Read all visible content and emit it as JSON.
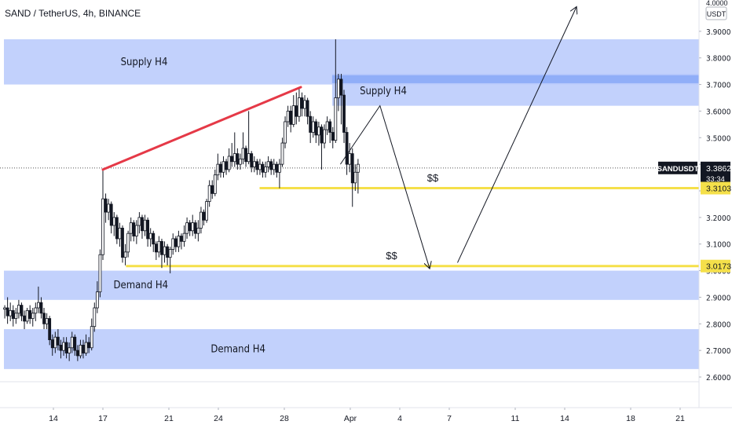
{
  "header": {
    "title": "SAND / TetherUS, 4h, BINANCE"
  },
  "colors": {
    "zone_fill": "#b7c9fb",
    "zone_dark": "#90aef8",
    "candle": "#131722",
    "trend_line": "#e53947",
    "level_line": "#f5e04a",
    "current_tag": "#131722",
    "level_tag": "#f5e04a",
    "dotted": "#555555",
    "arrow": "#131722"
  },
  "chart_data": {
    "type": "candlestick",
    "symbol": "SANDUSDT",
    "interval": "4h",
    "exchange": "BINANCE",
    "ylim": [
      2.55,
      4.0
    ],
    "y_unit": "USDT",
    "y_ticks": [
      "2.6000",
      "2.7000",
      "2.8000",
      "2.9000",
      "3.0000",
      "3.1000",
      "3.2000",
      "3.3000",
      "3.4000",
      "3.5000",
      "3.6000",
      "3.7000",
      "3.8000",
      "3.9000",
      "4.0000"
    ],
    "x_ticks": [
      {
        "label": "14",
        "day": 14
      },
      {
        "label": "17",
        "day": 17
      },
      {
        "label": "21",
        "day": 21
      },
      {
        "label": "24",
        "day": 24
      },
      {
        "label": "28",
        "day": 28
      },
      {
        "label": "Apr",
        "day": 32
      },
      {
        "label": "4",
        "day": 35
      },
      {
        "label": "7",
        "day": 38
      },
      {
        "label": "11",
        "day": 42
      },
      {
        "label": "14",
        "day": 45
      },
      {
        "label": "18",
        "day": 49
      },
      {
        "label": "21",
        "day": 52
      }
    ],
    "x_range_days": [
      11.0,
      54.6
    ],
    "current_price": {
      "label": "SANDUSDT",
      "value": "3.3862",
      "countdown": "33:34",
      "y": 3.3862
    },
    "levels": [
      {
        "value": "3.3103",
        "y": 3.3103,
        "from_day": 26.5
      },
      {
        "value": "3.0173",
        "y": 3.0173,
        "from_day": 18.4
      }
    ],
    "zones": [
      {
        "label": "Supply H4",
        "y_top": 3.87,
        "y_bottom": 3.7,
        "from_day": 11.0,
        "style": "fill"
      },
      {
        "label": "Supply H4",
        "y_top": 3.74,
        "y_bottom": 3.62,
        "from_day": 30.9,
        "style": "fill"
      },
      {
        "label": "Demand H4",
        "y_top": 3.0,
        "y_bottom": 2.89,
        "from_day": 11.0,
        "style": "fill"
      },
      {
        "label": "Demand H4",
        "y_top": 2.78,
        "y_bottom": 2.63,
        "from_day": 11.0,
        "style": "fill"
      }
    ],
    "liquidity_labels": [
      {
        "text": "$$",
        "day": 37.0,
        "y": 3.335
      },
      {
        "text": "$$",
        "day": 34.5,
        "y": 3.043
      }
    ],
    "trend_line": {
      "from_day": 17.0,
      "from_y": 3.38,
      "to_day": 29.0,
      "to_y": 3.69
    },
    "projection_path": [
      {
        "day": 31.4,
        "y": 3.4
      },
      {
        "day": 33.8,
        "y": 3.62
      },
      {
        "day": 36.8,
        "y": 3.01
      },
      {
        "day": 38.5,
        "y": 3.03
      },
      {
        "day": 45.7,
        "y": 3.99
      }
    ],
    "candles": [
      [
        11.05,
        2.855,
        2.86,
        2.82,
        2.87
      ],
      [
        11.22,
        2.86,
        2.83,
        2.8,
        2.9
      ],
      [
        11.39,
        2.83,
        2.85,
        2.81,
        2.88
      ],
      [
        11.56,
        2.85,
        2.82,
        2.79,
        2.87
      ],
      [
        11.73,
        2.82,
        2.84,
        2.8,
        2.86
      ],
      [
        11.9,
        2.84,
        2.87,
        2.82,
        2.89
      ],
      [
        12.07,
        2.87,
        2.83,
        2.81,
        2.88
      ],
      [
        12.24,
        2.83,
        2.81,
        2.78,
        2.85
      ],
      [
        12.41,
        2.81,
        2.85,
        2.8,
        2.86
      ],
      [
        12.58,
        2.85,
        2.82,
        2.8,
        2.87
      ],
      [
        12.75,
        2.82,
        2.84,
        2.79,
        2.86
      ],
      [
        12.92,
        2.84,
        2.86,
        2.81,
        2.88
      ],
      [
        13.09,
        2.86,
        2.88,
        2.84,
        2.94
      ],
      [
        13.26,
        2.88,
        2.84,
        2.82,
        2.9
      ],
      [
        13.43,
        2.84,
        2.8,
        2.78,
        2.86
      ],
      [
        13.6,
        2.8,
        2.82,
        2.78,
        2.84
      ],
      [
        13.77,
        2.82,
        2.74,
        2.72,
        2.83
      ],
      [
        13.94,
        2.74,
        2.71,
        2.68,
        2.76
      ],
      [
        14.11,
        2.71,
        2.75,
        2.69,
        2.77
      ],
      [
        14.28,
        2.75,
        2.72,
        2.7,
        2.78
      ],
      [
        14.45,
        2.72,
        2.7,
        2.67,
        2.74
      ],
      [
        14.62,
        2.7,
        2.73,
        2.68,
        2.75
      ],
      [
        14.79,
        2.73,
        2.69,
        2.67,
        2.75
      ],
      [
        14.96,
        2.69,
        2.71,
        2.66,
        2.73
      ],
      [
        15.13,
        2.71,
        2.75,
        2.69,
        2.77
      ],
      [
        15.3,
        2.75,
        2.7,
        2.68,
        2.76
      ],
      [
        15.47,
        2.7,
        2.68,
        2.66,
        2.72
      ],
      [
        15.64,
        2.68,
        2.72,
        2.67,
        2.74
      ],
      [
        15.81,
        2.72,
        2.69,
        2.67,
        2.74
      ],
      [
        15.98,
        2.69,
        2.73,
        2.68,
        2.76
      ],
      [
        16.15,
        2.73,
        2.71,
        2.69,
        2.75
      ],
      [
        16.32,
        2.71,
        2.79,
        2.7,
        2.82
      ],
      [
        16.49,
        2.79,
        2.86,
        2.77,
        2.88
      ],
      [
        16.66,
        2.86,
        2.92,
        2.84,
        2.96
      ],
      [
        16.83,
        2.92,
        3.06,
        2.9,
        3.08
      ],
      [
        17.0,
        3.06,
        3.27,
        3.04,
        3.38
      ],
      [
        17.17,
        3.27,
        3.22,
        3.18,
        3.29
      ],
      [
        17.34,
        3.22,
        3.25,
        3.19,
        3.27
      ],
      [
        17.51,
        3.25,
        3.17,
        3.14,
        3.26
      ],
      [
        17.68,
        3.17,
        3.2,
        3.13,
        3.22
      ],
      [
        17.85,
        3.2,
        3.12,
        3.1,
        3.21
      ],
      [
        18.02,
        3.12,
        3.16,
        3.09,
        3.18
      ],
      [
        18.19,
        3.16,
        3.05,
        3.03,
        3.17
      ],
      [
        18.36,
        3.05,
        3.07,
        3.02,
        3.1
      ],
      [
        18.53,
        3.07,
        3.14,
        3.05,
        3.15
      ],
      [
        18.7,
        3.14,
        3.18,
        3.11,
        3.2
      ],
      [
        18.87,
        3.18,
        3.13,
        3.11,
        3.19
      ],
      [
        19.04,
        3.13,
        3.17,
        3.1,
        3.19
      ],
      [
        19.21,
        3.17,
        3.2,
        3.14,
        3.22
      ],
      [
        19.38,
        3.2,
        3.15,
        3.12,
        3.21
      ],
      [
        19.55,
        3.15,
        3.19,
        3.13,
        3.21
      ],
      [
        19.72,
        3.19,
        3.12,
        3.09,
        3.2
      ],
      [
        19.89,
        3.12,
        3.14,
        3.09,
        3.16
      ],
      [
        20.06,
        3.14,
        3.1,
        3.07,
        3.15
      ],
      [
        20.23,
        3.1,
        3.07,
        3.04,
        3.11
      ],
      [
        20.4,
        3.07,
        3.11,
        3.05,
        3.13
      ],
      [
        20.57,
        3.11,
        3.06,
        3.01,
        3.12
      ],
      [
        20.74,
        3.06,
        3.09,
        3.03,
        3.11
      ],
      [
        20.91,
        3.09,
        3.05,
        3.02,
        3.1
      ],
      [
        21.08,
        3.05,
        3.08,
        2.99,
        3.09
      ],
      [
        21.25,
        3.08,
        3.12,
        3.06,
        3.14
      ],
      [
        21.42,
        3.12,
        3.09,
        3.07,
        3.13
      ],
      [
        21.59,
        3.09,
        3.13,
        3.07,
        3.15
      ],
      [
        21.76,
        3.13,
        3.11,
        3.08,
        3.14
      ],
      [
        21.93,
        3.11,
        3.14,
        3.09,
        3.17
      ],
      [
        22.1,
        3.14,
        3.18,
        3.12,
        3.2
      ],
      [
        22.27,
        3.18,
        3.15,
        3.13,
        3.19
      ],
      [
        22.44,
        3.15,
        3.18,
        3.13,
        3.21
      ],
      [
        22.61,
        3.18,
        3.14,
        3.12,
        3.19
      ],
      [
        22.78,
        3.14,
        3.16,
        3.11,
        3.19
      ],
      [
        22.95,
        3.16,
        3.22,
        3.14,
        3.24
      ],
      [
        23.12,
        3.22,
        3.19,
        3.17,
        3.23
      ],
      [
        23.29,
        3.19,
        3.26,
        3.18,
        3.27
      ],
      [
        23.46,
        3.26,
        3.32,
        3.24,
        3.34
      ],
      [
        23.63,
        3.32,
        3.29,
        3.27,
        3.34
      ],
      [
        23.8,
        3.29,
        3.36,
        3.28,
        3.38
      ],
      [
        23.97,
        3.36,
        3.4,
        3.34,
        3.44
      ],
      [
        24.14,
        3.4,
        3.37,
        3.35,
        3.41
      ],
      [
        24.31,
        3.37,
        3.41,
        3.35,
        3.43
      ],
      [
        24.48,
        3.41,
        3.38,
        3.36,
        3.42
      ],
      [
        24.65,
        3.38,
        3.43,
        3.37,
        3.46
      ],
      [
        24.82,
        3.43,
        3.41,
        3.39,
        3.48
      ],
      [
        24.99,
        3.41,
        3.44,
        3.39,
        3.52
      ],
      [
        25.16,
        3.44,
        3.4,
        3.38,
        3.46
      ],
      [
        25.33,
        3.4,
        3.42,
        3.38,
        3.44
      ],
      [
        25.5,
        3.42,
        3.46,
        3.4,
        3.52
      ],
      [
        25.67,
        3.46,
        3.41,
        3.39,
        3.47
      ],
      [
        25.84,
        3.41,
        3.44,
        3.4,
        3.6
      ],
      [
        26.01,
        3.44,
        3.39,
        3.37,
        3.45
      ],
      [
        26.18,
        3.39,
        3.41,
        3.37,
        3.43
      ],
      [
        26.35,
        3.41,
        3.38,
        3.36,
        3.42
      ],
      [
        26.52,
        3.38,
        3.4,
        3.36,
        3.42
      ],
      [
        26.69,
        3.4,
        3.37,
        3.35,
        3.41
      ],
      [
        26.86,
        3.37,
        3.39,
        3.35,
        3.41
      ],
      [
        27.03,
        3.39,
        3.41,
        3.37,
        3.43
      ],
      [
        27.2,
        3.41,
        3.38,
        3.36,
        3.42
      ],
      [
        27.37,
        3.38,
        3.4,
        3.36,
        3.42
      ],
      [
        27.54,
        3.4,
        3.37,
        3.35,
        3.41
      ],
      [
        27.71,
        3.37,
        3.4,
        3.31,
        3.42
      ],
      [
        27.88,
        3.4,
        3.48,
        3.39,
        3.5
      ],
      [
        28.05,
        3.48,
        3.56,
        3.46,
        3.58
      ],
      [
        28.22,
        3.56,
        3.6,
        3.54,
        3.62
      ],
      [
        28.39,
        3.6,
        3.55,
        3.52,
        3.62
      ],
      [
        28.56,
        3.55,
        3.62,
        3.54,
        3.66
      ],
      [
        28.73,
        3.62,
        3.58,
        3.55,
        3.67
      ],
      [
        28.9,
        3.58,
        3.65,
        3.56,
        3.69
      ],
      [
        29.07,
        3.65,
        3.61,
        3.58,
        3.67
      ],
      [
        29.24,
        3.61,
        3.64,
        3.58,
        3.66
      ],
      [
        29.41,
        3.64,
        3.58,
        3.55,
        3.65
      ],
      [
        29.58,
        3.58,
        3.52,
        3.48,
        3.6
      ],
      [
        29.75,
        3.52,
        3.56,
        3.5,
        3.58
      ],
      [
        29.92,
        3.56,
        3.51,
        3.48,
        3.57
      ],
      [
        30.09,
        3.51,
        3.54,
        3.47,
        3.56
      ],
      [
        30.26,
        3.54,
        3.48,
        3.38,
        3.55
      ],
      [
        30.43,
        3.48,
        3.53,
        3.46,
        3.55
      ],
      [
        30.6,
        3.53,
        3.56,
        3.51,
        3.58
      ],
      [
        30.77,
        3.56,
        3.52,
        3.48,
        3.57
      ],
      [
        30.94,
        3.52,
        3.49,
        3.46,
        3.54
      ],
      [
        31.11,
        3.49,
        3.65,
        3.48,
        3.87
      ],
      [
        31.28,
        3.65,
        3.72,
        3.6,
        3.74
      ],
      [
        31.45,
        3.72,
        3.66,
        3.55,
        3.74
      ],
      [
        31.62,
        3.66,
        3.52,
        3.48,
        3.68
      ],
      [
        31.79,
        3.52,
        3.4,
        3.36,
        3.54
      ],
      [
        31.96,
        3.4,
        3.44,
        3.37,
        3.48
      ],
      [
        32.13,
        3.44,
        3.33,
        3.24,
        3.46
      ],
      [
        32.3,
        3.33,
        3.37,
        3.3,
        3.4
      ],
      [
        32.47,
        3.37,
        3.4,
        3.29,
        3.42
      ]
    ]
  }
}
